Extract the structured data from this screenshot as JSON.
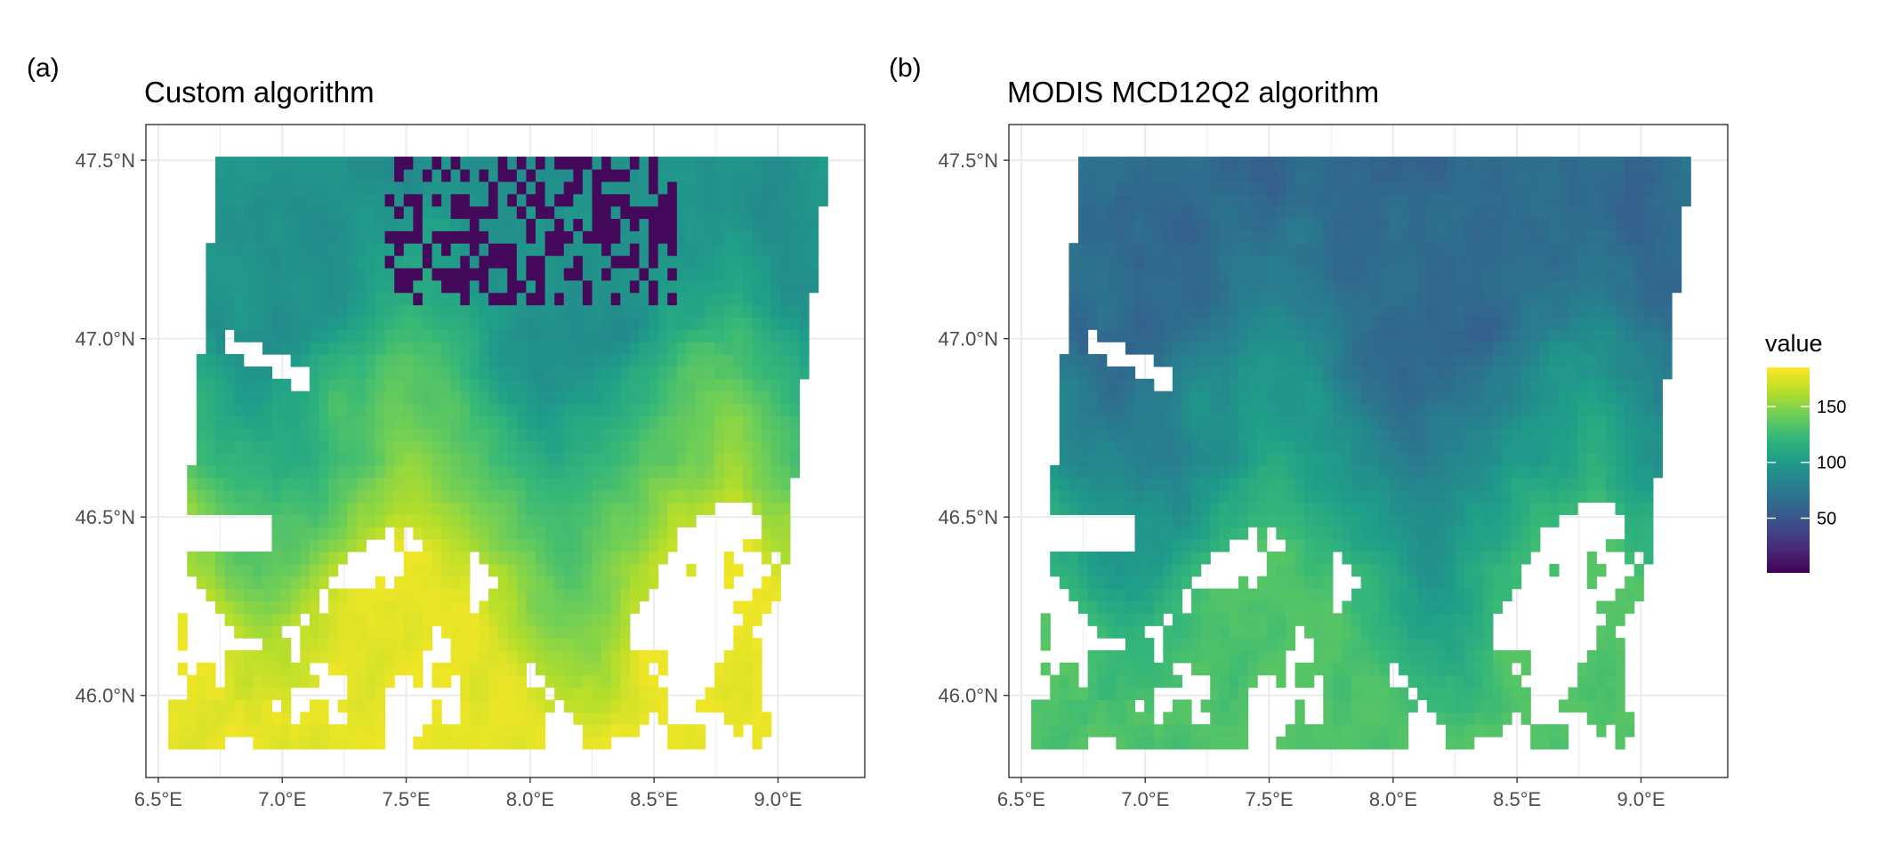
{
  "figure": {
    "panels": [
      {
        "tag": "(a)",
        "title": "Custom algorithm"
      },
      {
        "tag": "(b)",
        "title": "MODIS MCD12Q2 algorithm"
      }
    ],
    "legend": {
      "title": "value",
      "labels": [
        "150",
        "100",
        "50"
      ]
    }
  },
  "chart_data": [
    {
      "type": "heatmap",
      "title": "Custom algorithm",
      "xlabel": "",
      "ylabel": "",
      "x_ticks": [
        "6.5°E",
        "7.0°E",
        "7.5°E",
        "8.0°E",
        "8.5°E",
        "9.0°E"
      ],
      "x_tick_values": [
        6.5,
        7.0,
        7.5,
        8.0,
        8.5,
        9.0
      ],
      "y_ticks": [
        "47.5°N",
        "47.0°N",
        "46.5°N",
        "46.0°N"
      ],
      "y_tick_values": [
        47.5,
        47.0,
        46.5,
        46.0
      ],
      "xlim": [
        6.45,
        9.35
      ],
      "ylim": [
        45.77,
        47.6
      ],
      "data_extent": {
        "lon_min": 6.54,
        "lon_max": 9.2,
        "lat_min": 45.85,
        "lat_max": 47.51
      },
      "colormap": "viridis",
      "value_range": [
        1,
        185
      ],
      "grid": true,
      "legend_position": "right",
      "description_of_pattern": "mostly 100-185; highest (yellow) in the Alpine south with many missing (white) high-altitude pixels; low values (<20) clustered on the northern plateau around 7.5-8.5°E, 47.1-47.5°N"
    },
    {
      "type": "heatmap",
      "title": "MODIS MCD12Q2 algorithm",
      "xlabel": "",
      "ylabel": "",
      "x_ticks": [
        "6.5°E",
        "7.0°E",
        "7.5°E",
        "8.0°E",
        "8.5°E",
        "9.0°E"
      ],
      "x_tick_values": [
        6.5,
        7.0,
        7.5,
        8.0,
        8.5,
        9.0
      ],
      "y_ticks": [
        "47.5°N",
        "47.0°N",
        "46.5°N",
        "46.0°N"
      ],
      "y_tick_values": [
        47.5,
        47.0,
        46.5,
        46.0
      ],
      "xlim": [
        6.45,
        9.35
      ],
      "ylim": [
        45.77,
        47.6
      ],
      "data_extent": {
        "lon_min": 6.54,
        "lon_max": 9.2,
        "lat_min": 45.85,
        "lat_max": 47.51
      },
      "colormap": "viridis",
      "value_range": [
        1,
        185
      ],
      "grid": true,
      "legend_position": "right",
      "description_of_pattern": "mostly 60-110 (blue-teal) across the plateau, rising to green/yellow in the Alps; large missing areas in high mountains and lakes"
    }
  ],
  "colors": {
    "panel_border": "#333333",
    "grid": "#ebebeb",
    "tick_text": "#4d4d4d",
    "viridis": [
      "#440154",
      "#482878",
      "#3e4989",
      "#31688e",
      "#26828e",
      "#1f9e89",
      "#35b779",
      "#6ece58",
      "#b5de2b",
      "#fde725"
    ]
  }
}
